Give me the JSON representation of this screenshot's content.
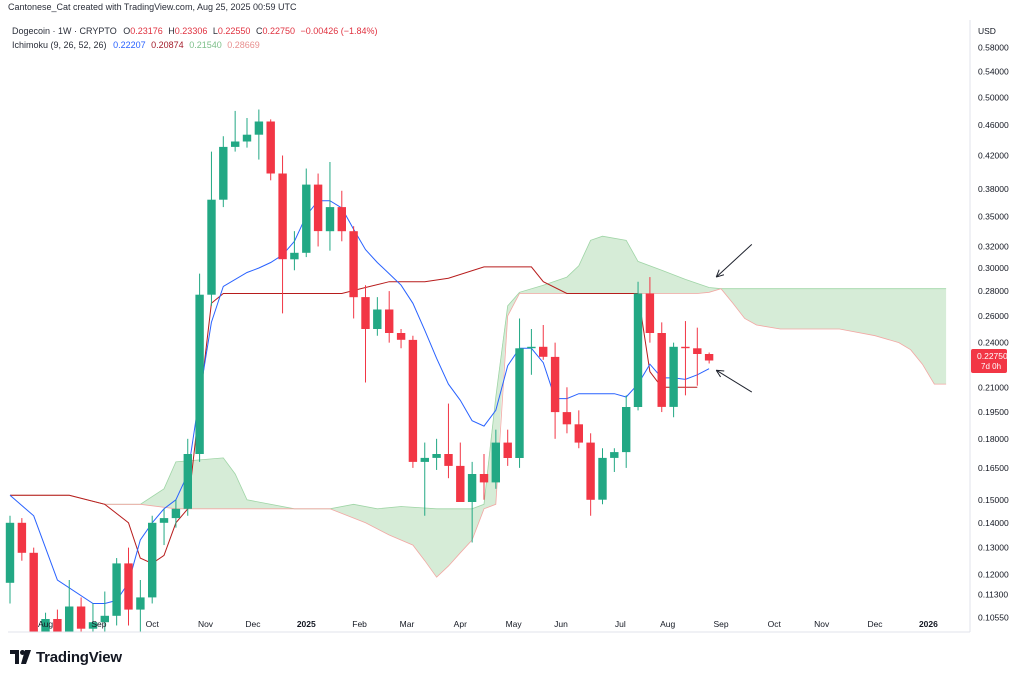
{
  "header": {
    "credit": "Cantonese_Cat created with TradingView.com, Aug 25, 2025 00:59 UTC"
  },
  "legend": {
    "symbol": "Dogecoin · 1W · CRYPTO",
    "o_label": "O",
    "o": "0.23176",
    "h_label": "H",
    "h": "0.23306",
    "l_label": "L",
    "l": "0.22550",
    "c_label": "C",
    "c": "0.22750",
    "change": "−0.00426 (−1.84%)",
    "ichimoku_name": "Ichimoku (9, 26, 52, 26)",
    "ich_values": [
      "0.22207",
      "0.20874",
      "0.21540",
      "0.28669"
    ]
  },
  "price_label": {
    "value": "0.22750",
    "countdown": "7d 0h"
  },
  "brand": {
    "name": "TradingView"
  },
  "colors": {
    "up": "#22a884",
    "down": "#f23645",
    "conversion": "#2962ff",
    "base": "#b71c1c",
    "cloud_up": "#c8e6c9",
    "cloud_down": "#fccfcc"
  },
  "chart_data": {
    "type": "candlestick",
    "title": "Dogecoin · 1W · CRYPTO",
    "currency": "USD",
    "y_scale": "log",
    "ylim": [
      0.101,
      0.63
    ],
    "y_ticks": [
      0.58,
      0.54,
      0.5,
      0.46,
      0.42,
      0.38,
      0.35,
      0.32,
      0.3,
      0.28,
      0.26,
      0.24,
      0.21,
      0.195,
      0.18,
      0.165,
      0.15,
      0.14,
      0.13,
      0.12,
      0.113,
      0.1055
    ],
    "y_tick_labels": [
      "0.58000",
      "0.54000",
      "0.50000",
      "0.46000",
      "0.42000",
      "0.38000",
      "0.35000",
      "0.32000",
      "0.30000",
      "0.28000",
      "0.26000",
      "0.24000",
      "0.21000",
      "0.19500",
      "0.18000",
      "0.16500",
      "0.15000",
      "0.14000",
      "0.13000",
      "0.12000",
      "0.11300",
      "0.10550"
    ],
    "x_axis": {
      "first_week": 0,
      "last_week": 81
    },
    "x_ticks": [
      {
        "label": "Aug",
        "week": 3,
        "bold": false
      },
      {
        "label": "Sep",
        "week": 7.5,
        "bold": false
      },
      {
        "label": "Oct",
        "week": 12,
        "bold": false
      },
      {
        "label": "Nov",
        "week": 16.5,
        "bold": false
      },
      {
        "label": "Dec",
        "week": 20.5,
        "bold": false
      },
      {
        "label": "2025",
        "week": 25,
        "bold": true
      },
      {
        "label": "Feb",
        "week": 29.5,
        "bold": false
      },
      {
        "label": "Mar",
        "week": 33.5,
        "bold": false
      },
      {
        "label": "Apr",
        "week": 38,
        "bold": false
      },
      {
        "label": "May",
        "week": 42.5,
        "bold": false
      },
      {
        "label": "Jun",
        "week": 46.5,
        "bold": false
      },
      {
        "label": "Jul",
        "week": 51.5,
        "bold": false
      },
      {
        "label": "Aug",
        "week": 55.5,
        "bold": false
      },
      {
        "label": "Sep",
        "week": 60,
        "bold": false
      },
      {
        "label": "Oct",
        "week": 64.5,
        "bold": false
      },
      {
        "label": "Nov",
        "week": 68.5,
        "bold": false
      },
      {
        "label": "Dec",
        "week": 73,
        "bold": false
      },
      {
        "label": "2026",
        "week": 77.5,
        "bold": true
      }
    ],
    "candles": [
      {
        "o": 0.117,
        "h": 0.143,
        "l": 0.11,
        "c": 0.14
      },
      {
        "o": 0.14,
        "h": 0.142,
        "l": 0.125,
        "c": 0.128
      },
      {
        "o": 0.128,
        "h": 0.13,
        "l": 0.098,
        "c": 0.101
      },
      {
        "o": 0.101,
        "h": 0.107,
        "l": 0.095,
        "c": 0.105
      },
      {
        "o": 0.105,
        "h": 0.108,
        "l": 0.097,
        "c": 0.1
      },
      {
        "o": 0.1,
        "h": 0.118,
        "l": 0.096,
        "c": 0.109
      },
      {
        "o": 0.109,
        "h": 0.112,
        "l": 0.098,
        "c": 0.102
      },
      {
        "o": 0.102,
        "h": 0.11,
        "l": 0.097,
        "c": 0.104
      },
      {
        "o": 0.104,
        "h": 0.114,
        "l": 0.101,
        "c": 0.106
      },
      {
        "o": 0.106,
        "h": 0.126,
        "l": 0.103,
        "c": 0.124
      },
      {
        "o": 0.124,
        "h": 0.13,
        "l": 0.103,
        "c": 0.108
      },
      {
        "o": 0.108,
        "h": 0.118,
        "l": 0.1,
        "c": 0.112
      },
      {
        "o": 0.112,
        "h": 0.143,
        "l": 0.11,
        "c": 0.14
      },
      {
        "o": 0.14,
        "h": 0.146,
        "l": 0.131,
        "c": 0.142
      },
      {
        "o": 0.142,
        "h": 0.15,
        "l": 0.138,
        "c": 0.146
      },
      {
        "o": 0.146,
        "h": 0.18,
        "l": 0.143,
        "c": 0.172
      },
      {
        "o": 0.172,
        "h": 0.295,
        "l": 0.168,
        "c": 0.277
      },
      {
        "o": 0.277,
        "h": 0.425,
        "l": 0.268,
        "c": 0.368
      },
      {
        "o": 0.368,
        "h": 0.445,
        "l": 0.36,
        "c": 0.431
      },
      {
        "o": 0.431,
        "h": 0.48,
        "l": 0.425,
        "c": 0.438
      },
      {
        "o": 0.438,
        "h": 0.47,
        "l": 0.43,
        "c": 0.447
      },
      {
        "o": 0.447,
        "h": 0.482,
        "l": 0.415,
        "c": 0.465
      },
      {
        "o": 0.465,
        "h": 0.468,
        "l": 0.39,
        "c": 0.398
      },
      {
        "o": 0.398,
        "h": 0.42,
        "l": 0.262,
        "c": 0.308
      },
      {
        "o": 0.308,
        "h": 0.335,
        "l": 0.298,
        "c": 0.314
      },
      {
        "o": 0.314,
        "h": 0.404,
        "l": 0.31,
        "c": 0.385
      },
      {
        "o": 0.385,
        "h": 0.398,
        "l": 0.32,
        "c": 0.335
      },
      {
        "o": 0.335,
        "h": 0.412,
        "l": 0.316,
        "c": 0.36
      },
      {
        "o": 0.36,
        "h": 0.378,
        "l": 0.325,
        "c": 0.335
      },
      {
        "o": 0.335,
        "h": 0.34,
        "l": 0.258,
        "c": 0.275
      },
      {
        "o": 0.275,
        "h": 0.285,
        "l": 0.213,
        "c": 0.25
      },
      {
        "o": 0.25,
        "h": 0.275,
        "l": 0.245,
        "c": 0.265
      },
      {
        "o": 0.265,
        "h": 0.28,
        "l": 0.24,
        "c": 0.247
      },
      {
        "o": 0.247,
        "h": 0.25,
        "l": 0.236,
        "c": 0.242
      },
      {
        "o": 0.242,
        "h": 0.245,
        "l": 0.165,
        "c": 0.168
      },
      {
        "o": 0.168,
        "h": 0.178,
        "l": 0.143,
        "c": 0.17
      },
      {
        "o": 0.17,
        "h": 0.18,
        "l": 0.164,
        "c": 0.172
      },
      {
        "o": 0.172,
        "h": 0.2,
        "l": 0.16,
        "c": 0.166
      },
      {
        "o": 0.166,
        "h": 0.178,
        "l": 0.15,
        "c": 0.149
      },
      {
        "o": 0.149,
        "h": 0.168,
        "l": 0.132,
        "c": 0.162
      },
      {
        "o": 0.162,
        "h": 0.172,
        "l": 0.15,
        "c": 0.158
      },
      {
        "o": 0.158,
        "h": 0.185,
        "l": 0.155,
        "c": 0.178
      },
      {
        "o": 0.178,
        "h": 0.185,
        "l": 0.166,
        "c": 0.17
      },
      {
        "o": 0.17,
        "h": 0.258,
        "l": 0.165,
        "c": 0.236
      },
      {
        "o": 0.236,
        "h": 0.25,
        "l": 0.218,
        "c": 0.237
      },
      {
        "o": 0.237,
        "h": 0.253,
        "l": 0.228,
        "c": 0.23
      },
      {
        "o": 0.23,
        "h": 0.24,
        "l": 0.18,
        "c": 0.195
      },
      {
        "o": 0.195,
        "h": 0.21,
        "l": 0.183,
        "c": 0.188
      },
      {
        "o": 0.188,
        "h": 0.196,
        "l": 0.175,
        "c": 0.178
      },
      {
        "o": 0.178,
        "h": 0.183,
        "l": 0.143,
        "c": 0.15
      },
      {
        "o": 0.15,
        "h": 0.175,
        "l": 0.148,
        "c": 0.17
      },
      {
        "o": 0.17,
        "h": 0.175,
        "l": 0.163,
        "c": 0.173
      },
      {
        "o": 0.173,
        "h": 0.205,
        "l": 0.165,
        "c": 0.198
      },
      {
        "o": 0.198,
        "h": 0.288,
        "l": 0.196,
        "c": 0.278
      },
      {
        "o": 0.278,
        "h": 0.292,
        "l": 0.24,
        "c": 0.247
      },
      {
        "o": 0.247,
        "h": 0.255,
        "l": 0.195,
        "c": 0.198
      },
      {
        "o": 0.198,
        "h": 0.24,
        "l": 0.192,
        "c": 0.237
      },
      {
        "o": 0.237,
        "h": 0.256,
        "l": 0.205,
        "c": 0.236
      },
      {
        "o": 0.236,
        "h": 0.251,
        "l": 0.211,
        "c": 0.232
      },
      {
        "o": 0.232,
        "h": 0.233,
        "l": 0.2255,
        "c": 0.2275
      }
    ],
    "conversion_line": [
      [
        0,
        0.152
      ],
      [
        2,
        0.143
      ],
      [
        4,
        0.118
      ],
      [
        7,
        0.11
      ],
      [
        8,
        0.11
      ],
      [
        9,
        0.111
      ],
      [
        10,
        0.117
      ],
      [
        11,
        0.133
      ],
      [
        12,
        0.14
      ],
      [
        13,
        0.146
      ],
      [
        14,
        0.15
      ],
      [
        15,
        0.162
      ],
      [
        16,
        0.205
      ],
      [
        17,
        0.255
      ],
      [
        18,
        0.284
      ],
      [
        20,
        0.296
      ],
      [
        21,
        0.3
      ],
      [
        22,
        0.305
      ],
      [
        23,
        0.312
      ],
      [
        24,
        0.325
      ],
      [
        25,
        0.351
      ],
      [
        26,
        0.367
      ],
      [
        27,
        0.367
      ],
      [
        28,
        0.359
      ],
      [
        29,
        0.337
      ],
      [
        30,
        0.317
      ],
      [
        31,
        0.305
      ],
      [
        32,
        0.295
      ],
      [
        33,
        0.285
      ],
      [
        34,
        0.27
      ],
      [
        35,
        0.249
      ],
      [
        36,
        0.229
      ],
      [
        37,
        0.212
      ],
      [
        38,
        0.202
      ],
      [
        39,
        0.19
      ],
      [
        40,
        0.187
      ],
      [
        41,
        0.196
      ],
      [
        42,
        0.224
      ],
      [
        43,
        0.236
      ],
      [
        44,
        0.236
      ],
      [
        45,
        0.226
      ],
      [
        46,
        0.203
      ],
      [
        47,
        0.203
      ],
      [
        48,
        0.206
      ],
      [
        49,
        0.206
      ],
      [
        50,
        0.206
      ],
      [
        51,
        0.206
      ],
      [
        52,
        0.204
      ],
      [
        53,
        0.212
      ],
      [
        54,
        0.225
      ],
      [
        55,
        0.216
      ],
      [
        56,
        0.216
      ],
      [
        57,
        0.215
      ],
      [
        58,
        0.218
      ],
      [
        59,
        0.222
      ]
    ],
    "base_line": [
      [
        0,
        0.152
      ],
      [
        5,
        0.152
      ],
      [
        8,
        0.148
      ],
      [
        10,
        0.14
      ],
      [
        11,
        0.126
      ],
      [
        12,
        0.124
      ],
      [
        13,
        0.127
      ],
      [
        14,
        0.14
      ],
      [
        15,
        0.146
      ],
      [
        16,
        0.2
      ],
      [
        17,
        0.27
      ],
      [
        18,
        0.278
      ],
      [
        28,
        0.278
      ],
      [
        30,
        0.283
      ],
      [
        32,
        0.288
      ],
      [
        35,
        0.288
      ],
      [
        37,
        0.291
      ],
      [
        40,
        0.301
      ],
      [
        44,
        0.301
      ],
      [
        45,
        0.288
      ],
      [
        47,
        0.278
      ],
      [
        53,
        0.278
      ],
      [
        54,
        0.22
      ],
      [
        55,
        0.21
      ],
      [
        58,
        0.21
      ]
    ],
    "cloud_upper": [
      [
        0,
        0.152
      ],
      [
        5,
        0.152
      ],
      [
        8,
        0.148
      ],
      [
        11,
        0.148
      ],
      [
        13,
        0.155
      ],
      [
        14,
        0.168
      ],
      [
        18,
        0.17
      ],
      [
        19,
        0.162
      ],
      [
        20,
        0.15
      ],
      [
        24,
        0.146
      ],
      [
        27,
        0.146
      ],
      [
        29,
        0.148
      ],
      [
        31,
        0.146
      ],
      [
        33,
        0.147
      ],
      [
        36,
        0.146
      ],
      [
        39,
        0.146
      ],
      [
        40,
        0.148
      ],
      [
        41,
        0.204
      ],
      [
        42,
        0.268
      ],
      [
        43,
        0.279
      ],
      [
        45,
        0.285
      ],
      [
        47,
        0.292
      ],
      [
        48,
        0.302
      ],
      [
        49,
        0.326
      ],
      [
        50,
        0.33
      ],
      [
        52,
        0.326
      ],
      [
        53,
        0.306
      ],
      [
        55,
        0.298
      ],
      [
        57,
        0.29
      ],
      [
        59,
        0.283
      ],
      [
        60,
        0.282
      ]
    ],
    "cloud_lower": [
      [
        0,
        0.152
      ],
      [
        5,
        0.152
      ],
      [
        8,
        0.148
      ],
      [
        11,
        0.148
      ],
      [
        14,
        0.146
      ],
      [
        24,
        0.146
      ],
      [
        27,
        0.146
      ],
      [
        30,
        0.14
      ],
      [
        32,
        0.135
      ],
      [
        34,
        0.131
      ],
      [
        35,
        0.125
      ],
      [
        36,
        0.119
      ],
      [
        37,
        0.123
      ],
      [
        38,
        0.128
      ],
      [
        39,
        0.133
      ],
      [
        40,
        0.146
      ],
      [
        41,
        0.148
      ],
      [
        42,
        0.26
      ],
      [
        43,
        0.278
      ],
      [
        47,
        0.278
      ],
      [
        53,
        0.278
      ],
      [
        58,
        0.278
      ],
      [
        59,
        0.279
      ],
      [
        60,
        0.282
      ],
      [
        61,
        0.27
      ],
      [
        62,
        0.258
      ],
      [
        63,
        0.253
      ],
      [
        65,
        0.25
      ],
      [
        70,
        0.25
      ],
      [
        73,
        0.245
      ],
      [
        75,
        0.24
      ],
      [
        76,
        0.235
      ],
      [
        77,
        0.225
      ],
      [
        78,
        0.212
      ],
      [
        79,
        0.212
      ]
    ],
    "annotations": [
      {
        "type": "arrow",
        "description": "arrow pointing to cloud top near 0.283"
      },
      {
        "type": "arrow",
        "description": "arrow pointing to conversion line near 0.22"
      }
    ]
  }
}
